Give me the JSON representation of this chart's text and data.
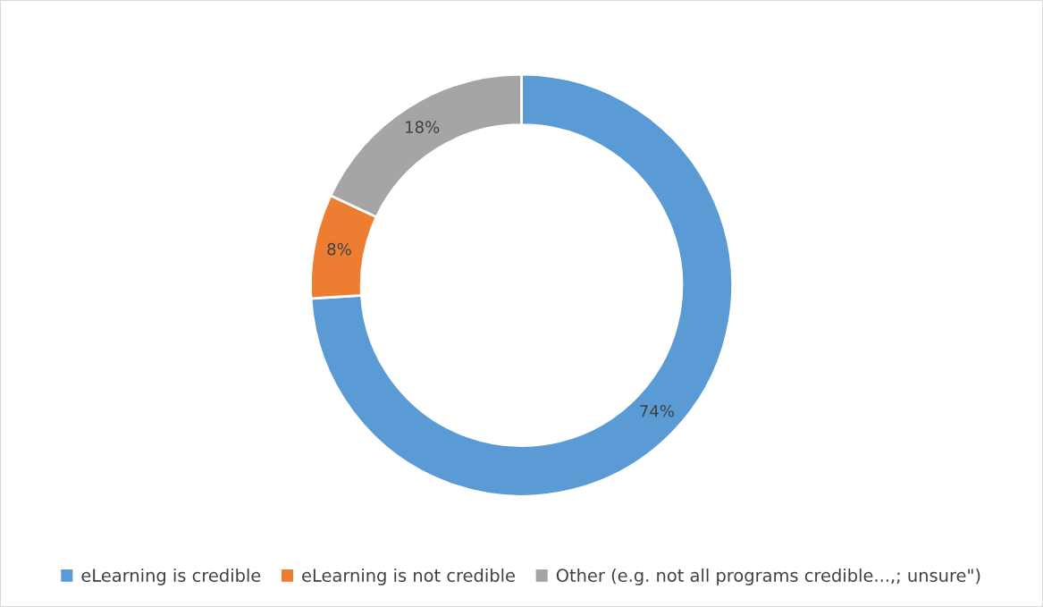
{
  "chart_data": {
    "type": "donut",
    "categories": [
      "eLearning is credible",
      "eLearning is not credible",
      "Other (e.g. not all programs credible...,; unsure\")"
    ],
    "values": [
      74,
      8,
      18
    ],
    "colors": [
      "#5b9bd5",
      "#ed7d31",
      "#a5a5a5"
    ],
    "value_labels": [
      "74%",
      "8%",
      "18%"
    ],
    "legend": "bottom"
  }
}
